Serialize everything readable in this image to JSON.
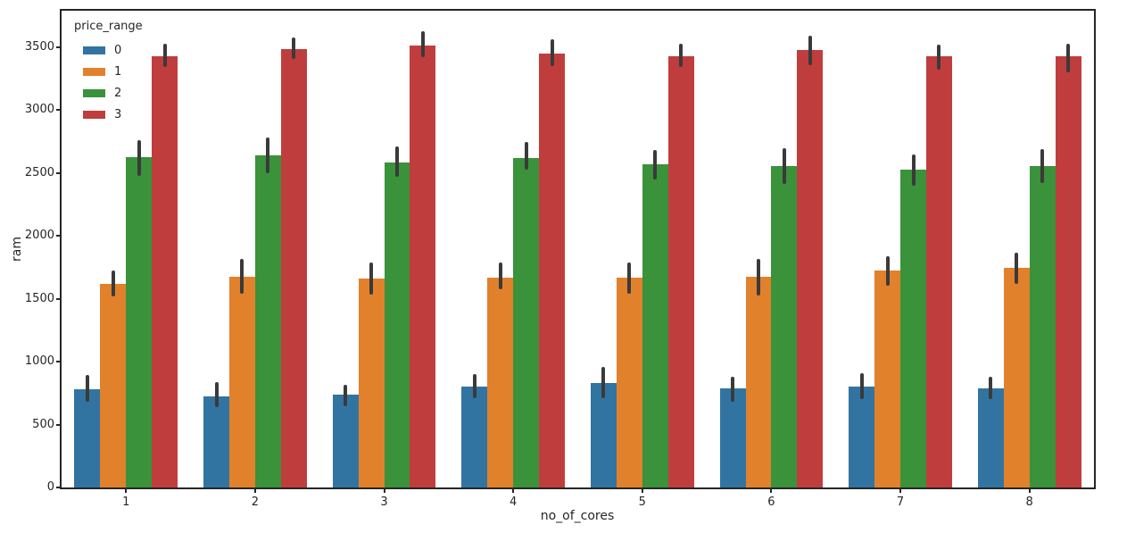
{
  "chart_data": {
    "type": "bar",
    "title": "",
    "xlabel": "no_of_cores",
    "ylabel": "ram",
    "categories": [
      "1",
      "2",
      "3",
      "4",
      "5",
      "6",
      "7",
      "8"
    ],
    "yticks": [
      0,
      500,
      1000,
      1500,
      2000,
      2500,
      3000,
      3500
    ],
    "ylim": [
      0,
      3790
    ],
    "grid": false,
    "legend": {
      "title": "price_range",
      "position": "upper left"
    },
    "error_bar_color": "#3a3a3a",
    "series": [
      {
        "name": "0",
        "color": "#3274a1",
        "values": [
          780,
          725,
          735,
          805,
          830,
          785,
          800,
          785
        ],
        "ci_low": [
          680,
          640,
          645,
          710,
          710,
          680,
          705,
          700
        ],
        "ci_high": [
          895,
          835,
          815,
          900,
          955,
          880,
          910,
          880
        ]
      },
      {
        "name": "1",
        "color": "#e1812c",
        "values": [
          1615,
          1675,
          1660,
          1665,
          1665,
          1675,
          1725,
          1745
        ],
        "ci_low": [
          1520,
          1540,
          1535,
          1575,
          1540,
          1525,
          1605,
          1620
        ],
        "ci_high": [
          1725,
          1815,
          1790,
          1785,
          1785,
          1820,
          1840,
          1870
        ]
      },
      {
        "name": "2",
        "color": "#3a923a",
        "values": [
          2625,
          2640,
          2580,
          2620,
          2570,
          2555,
          2530,
          2555
        ],
        "ci_low": [
          2480,
          2500,
          2470,
          2530,
          2450,
          2410,
          2400,
          2420
        ],
        "ci_high": [
          2760,
          2780,
          2710,
          2750,
          2680,
          2700,
          2650,
          2690
        ]
      },
      {
        "name": "3",
        "color": "#c03d3e",
        "values": [
          3430,
          3485,
          3515,
          3450,
          3430,
          3480,
          3425,
          3425
        ],
        "ci_low": [
          3340,
          3410,
          3420,
          3350,
          3340,
          3360,
          3320,
          3300
        ],
        "ci_high": [
          3530,
          3575,
          3630,
          3560,
          3530,
          3590,
          3520,
          3530
        ]
      }
    ]
  }
}
